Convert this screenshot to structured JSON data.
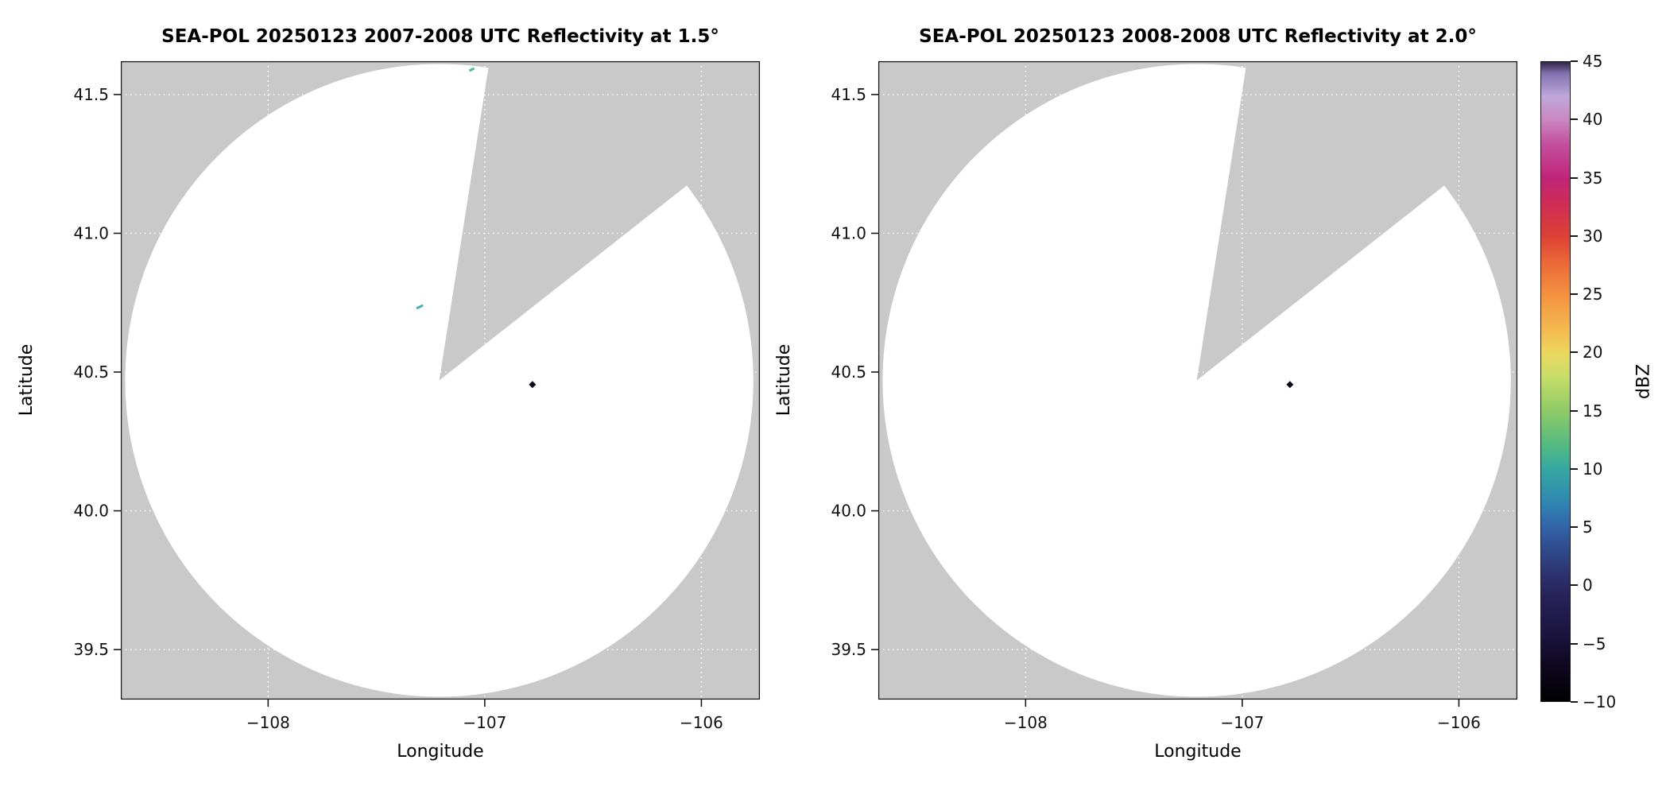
{
  "figure": {
    "background": "#ffffff",
    "nodata_color": "#c9c9c9",
    "coverage_color": "#ffffff",
    "frame_color": "#1a1a1a",
    "grid": {
      "color": "#ffffff",
      "dash": "1.5 4.5",
      "width": 1.4
    }
  },
  "chart_data": [
    {
      "type": "heatmap",
      "subtype": "radar_ppi",
      "title": "SEA-POL 20250123 2007-2008 UTC Reflectivity at 1.5°",
      "xlabel": "Longitude",
      "ylabel": "Latitude",
      "xlim": [
        -108.68,
        -105.73
      ],
      "ylim": [
        39.32,
        41.62
      ],
      "xticks": [
        -108,
        -107,
        -106
      ],
      "xtick_labels": [
        "−108",
        "−107",
        "−106"
      ],
      "yticks": [
        39.5,
        40.0,
        40.5,
        41.0,
        41.5
      ],
      "ytick_labels": [
        "39.5",
        "40.0",
        "40.5",
        "41.0",
        "41.5"
      ],
      "grid": true,
      "legend": false,
      "radar_center": {
        "lon": -107.21,
        "lat": 40.47
      },
      "coverage_radius_deg": {
        "lon": 1.45,
        "lat": 1.14
      },
      "missing_sector_azimuth_deg": [
        9,
        52
      ],
      "echoes": [
        {
          "lon": -106.78,
          "lat": 40.455,
          "dbz_approx": -9,
          "color": "#0c0a18",
          "shape": "diamond",
          "size": 9
        },
        {
          "lon": -107.3,
          "lat": 40.735,
          "dbz_approx": 10,
          "color": "#45b5ab",
          "shape": "dash",
          "size": 9
        },
        {
          "lon": -107.06,
          "lat": 41.59,
          "dbz_approx": 12,
          "color": "#4dbd9a",
          "shape": "dash",
          "size": 7
        }
      ]
    },
    {
      "type": "heatmap",
      "subtype": "radar_ppi",
      "title": "SEA-POL 20250123 2008-2008 UTC Reflectivity at 2.0°",
      "xlabel": "Longitude",
      "ylabel": "Latitude",
      "xlim": [
        -108.68,
        -105.73
      ],
      "ylim": [
        39.32,
        41.62
      ],
      "xticks": [
        -108,
        -107,
        -106
      ],
      "xtick_labels": [
        "−108",
        "−107",
        "−106"
      ],
      "yticks": [
        39.5,
        40.0,
        40.5,
        41.0,
        41.5
      ],
      "ytick_labels": [
        "39.5",
        "40.0",
        "40.5",
        "41.0",
        "41.5"
      ],
      "grid": true,
      "legend": false,
      "radar_center": {
        "lon": -107.21,
        "lat": 40.47
      },
      "coverage_radius_deg": {
        "lon": 1.45,
        "lat": 1.14
      },
      "missing_sector_azimuth_deg": [
        9,
        52
      ],
      "echoes": [
        {
          "lon": -106.78,
          "lat": 40.455,
          "dbz_approx": -9,
          "color": "#0c0a18",
          "shape": "diamond",
          "size": 9
        }
      ]
    }
  ],
  "colorbar": {
    "label": "dBZ",
    "min": -10,
    "max": 45,
    "ticks": [
      -10,
      -5,
      0,
      5,
      10,
      15,
      20,
      25,
      30,
      35,
      40,
      45
    ],
    "tick_labels": [
      "−10",
      "−5",
      "0",
      "5",
      "10",
      "15",
      "20",
      "25",
      "30",
      "35",
      "40",
      "45"
    ],
    "stops": [
      {
        "value": -10,
        "color": "#000000"
      },
      {
        "value": -7,
        "color": "#0e0820"
      },
      {
        "value": -4,
        "color": "#1c1540"
      },
      {
        "value": -1,
        "color": "#272259"
      },
      {
        "value": 1,
        "color": "#2c336f"
      },
      {
        "value": 3,
        "color": "#2f4a8b"
      },
      {
        "value": 5,
        "color": "#3263a9"
      },
      {
        "value": 7,
        "color": "#2f85b2"
      },
      {
        "value": 10,
        "color": "#36a8a0"
      },
      {
        "value": 12,
        "color": "#53ba82"
      },
      {
        "value": 15,
        "color": "#8fcb67"
      },
      {
        "value": 18,
        "color": "#c9de69"
      },
      {
        "value": 20,
        "color": "#ecd75e"
      },
      {
        "value": 22,
        "color": "#f4b84f"
      },
      {
        "value": 25,
        "color": "#f49140"
      },
      {
        "value": 28,
        "color": "#ea6437"
      },
      {
        "value": 30,
        "color": "#dc4034"
      },
      {
        "value": 33,
        "color": "#cd2b58"
      },
      {
        "value": 35,
        "color": "#c02478"
      },
      {
        "value": 38,
        "color": "#c4509f"
      },
      {
        "value": 40,
        "color": "#ca87c0"
      },
      {
        "value": 42,
        "color": "#c0a8da"
      },
      {
        "value": 44,
        "color": "#8273b0"
      },
      {
        "value": 45,
        "color": "#2f2447"
      }
    ]
  }
}
